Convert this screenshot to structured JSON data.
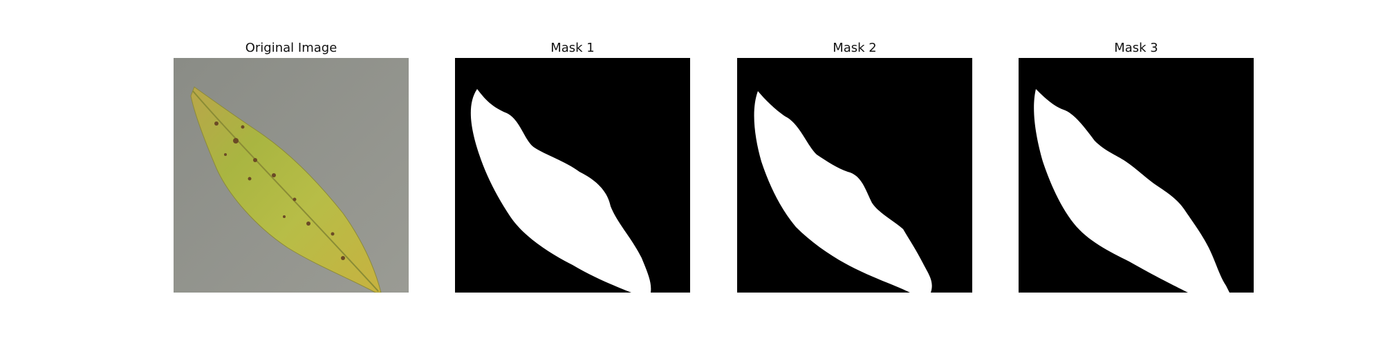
{
  "figure": {
    "panels": [
      {
        "title": "Original Image",
        "kind": "photo"
      },
      {
        "title": "Mask 1",
        "kind": "mask"
      },
      {
        "title": "Mask 2",
        "kind": "mask"
      },
      {
        "title": "Mask 3",
        "kind": "mask"
      }
    ]
  },
  "colors": {
    "mask_background": "#000000",
    "mask_foreground": "#ffffff",
    "photo_background": "#8e9088",
    "leaf_green": "#a6b23c",
    "leaf_yellow": "#c6bf3f",
    "leaf_spot": "#6b4a26"
  }
}
